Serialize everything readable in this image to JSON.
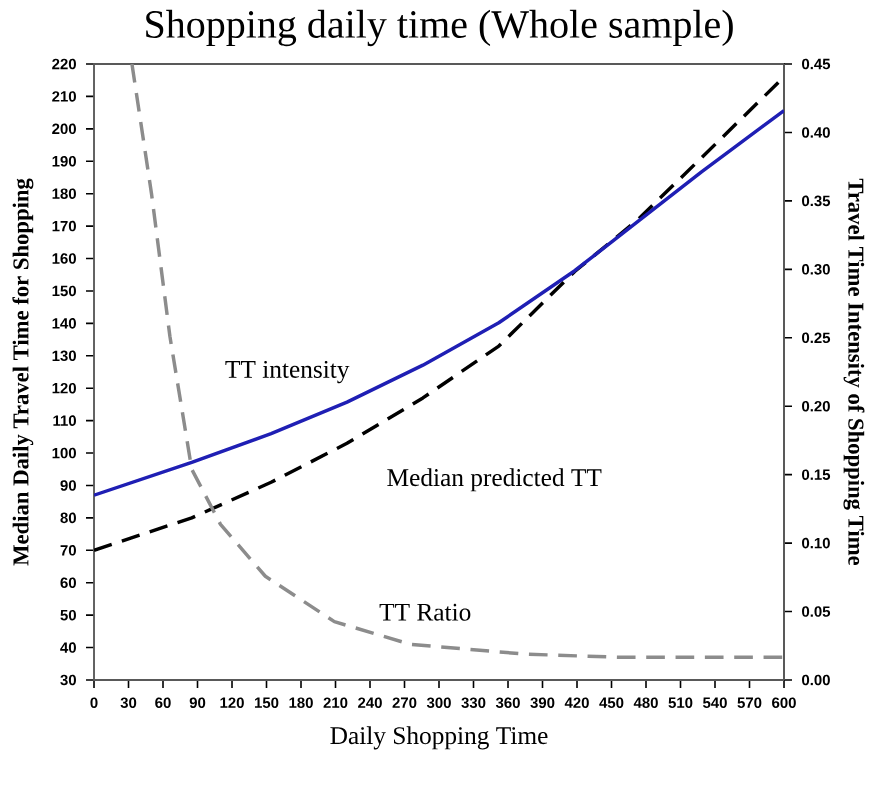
{
  "chart_data": {
    "type": "line",
    "title": "Shopping daily time (Whole sample)",
    "xlabel": "Daily Shopping Time",
    "ylabel": "Median Daily Travel Time for Shopping",
    "y2label": "Travel Time Intensity of Shopping Time",
    "xlim": [
      0,
      600
    ],
    "xticks": [
      0,
      30,
      60,
      90,
      120,
      150,
      180,
      210,
      240,
      270,
      300,
      330,
      360,
      390,
      420,
      450,
      480,
      510,
      540,
      570,
      600
    ],
    "ylim": [
      30,
      220
    ],
    "yticks": [
      30,
      40,
      50,
      60,
      70,
      80,
      90,
      100,
      110,
      120,
      130,
      140,
      150,
      160,
      170,
      180,
      190,
      200,
      210,
      220
    ],
    "y2lim": [
      0,
      0.45
    ],
    "y2ticks": [
      {
        "value": 0,
        "label": "0.00"
      },
      {
        "value": 0.05,
        "label": "0.05"
      },
      {
        "value": 0.1,
        "label": "0.10"
      },
      {
        "value": 0.15,
        "label": "0.15"
      },
      {
        "value": 0.2,
        "label": "0.20"
      },
      {
        "value": 0.25,
        "label": "0.25"
      },
      {
        "value": 0.3,
        "label": "0.30"
      },
      {
        "value": 0.35,
        "label": "0.35"
      },
      {
        "value": 0.4,
        "label": "0.40"
      },
      {
        "value": 0.45,
        "label": "0.45"
      }
    ],
    "marker": "none",
    "series": [
      {
        "name": "TT intensity",
        "color": "#1f1fb4",
        "axis": "y2",
        "line_style": "solid",
        "x": [
          0,
          85,
          154,
          220,
          286,
          352,
          418,
          473,
          528,
          600
        ],
        "values": [
          0.135,
          0.159,
          0.18,
          0.203,
          0.23,
          0.261,
          0.299,
          0.335,
          0.371,
          0.416
        ]
      },
      {
        "name": "Median predicted TT",
        "color": "#000000",
        "line_style": "dashed",
        "x": [
          0,
          85,
          154,
          220,
          286,
          352,
          418,
          473,
          528,
          600
        ],
        "values": [
          70,
          80,
          91,
          103,
          117,
          133,
          156,
          172,
          191,
          216
        ]
      },
      {
        "name": "TT Ratio",
        "color": "#8c8c8c",
        "line_style": "dashed",
        "x": [
          33,
          50,
          66,
          85,
          110,
          149,
          209,
          275,
          374,
          457,
          600
        ],
        "values": [
          220,
          180,
          136,
          95,
          78,
          62,
          48,
          41,
          38,
          37,
          37
        ]
      }
    ]
  }
}
